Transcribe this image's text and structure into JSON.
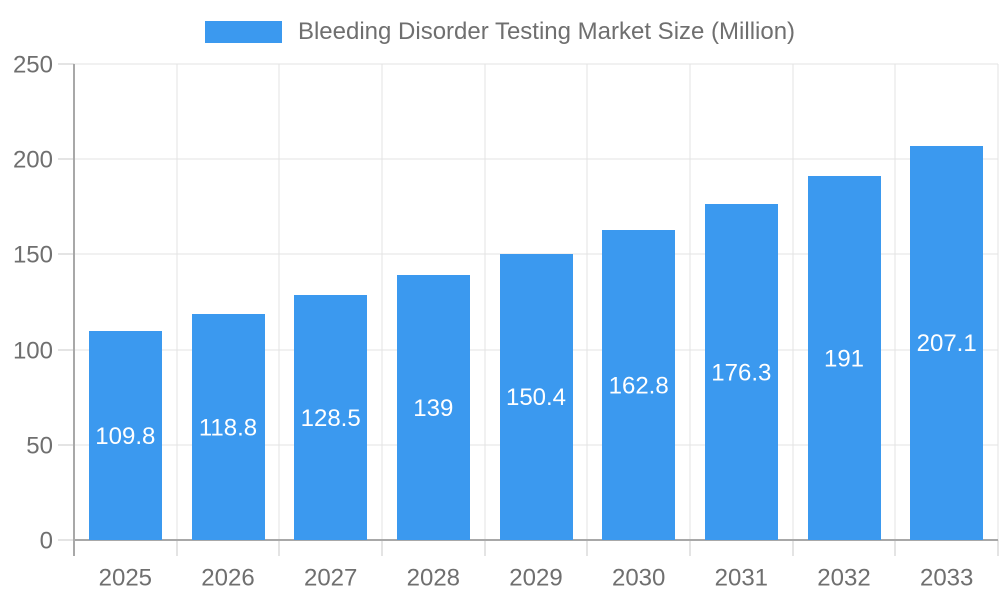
{
  "legend": {
    "label": "Bleeding Disorder Testing Market Size (Million)"
  },
  "chart_data": {
    "type": "bar",
    "title": "Bleeding Disorder Testing Market Size (Million)",
    "categories": [
      "2025",
      "2026",
      "2027",
      "2028",
      "2029",
      "2030",
      "2031",
      "2032",
      "2033"
    ],
    "values": [
      109.8,
      118.8,
      128.5,
      139,
      150.4,
      162.8,
      176.3,
      191,
      207.1
    ],
    "bar_value_labels": [
      "109.8",
      "118.8",
      "128.5",
      "139",
      "150.4",
      "162.8",
      "176.3",
      "191",
      "207.1"
    ],
    "xlabel": "",
    "ylabel": "",
    "ylim": [
      0,
      250
    ],
    "yticks": [
      0,
      50,
      100,
      150,
      200,
      250
    ],
    "grid": true,
    "legend_position": "top-center",
    "value_labels_position": "inside-center",
    "colors": {
      "bar": "#3b99ef",
      "bar_value_label": "#ffffff",
      "axis_line": "#a8a8a8",
      "grid_line": "#e3e3e3",
      "tick_line": "#c8c8c8",
      "axis_text": "#6f6f6f",
      "background": "#ffffff"
    }
  }
}
